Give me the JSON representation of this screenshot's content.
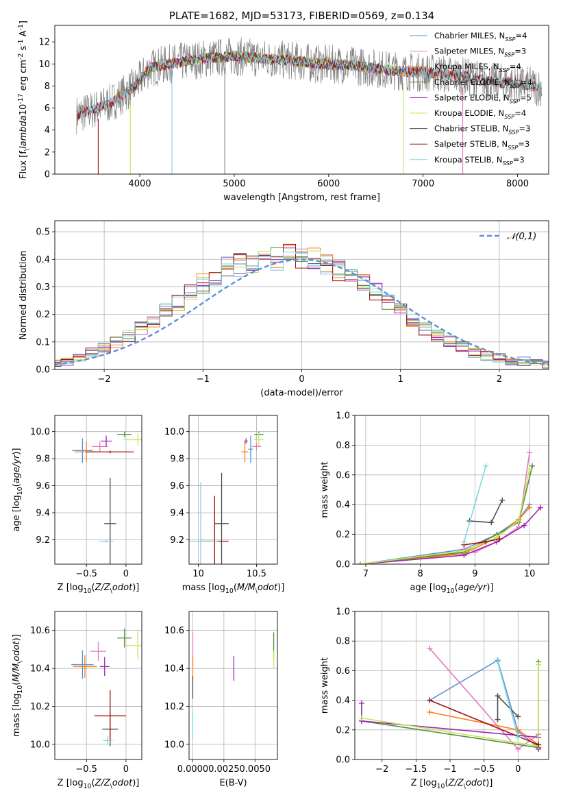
{
  "colors": {
    "chabrier_miles": "#5b8fd6",
    "salpeter_miles": "#e377c2",
    "kroupa_miles": "#ff7f0e",
    "chabrier_elodie": "#4f8f3a",
    "salpeter_elodie": "#9b27b0",
    "kroupa_elodie": "#c7e55a",
    "chabrier_stelib": "#4d4d4d",
    "salpeter_stelib": "#a01010",
    "kroupa_stelib": "#7fd6e0",
    "grey_spectrum": "#808080",
    "normal_curve": "#5b8fd6"
  },
  "chart_data": [
    {
      "id": "spectrum",
      "type": "line",
      "title": "PLATE=1682, MJD=53173, FIBERID=0569, z=0.134",
      "xlabel": "wavelength [Angstrom, rest frame]",
      "ylabel": "Flux [f$_\\lambda$10$^{-17}$ erg cm$^{-2}$ s$^{-1}$ A$^{-1}$]",
      "xlim": [
        3100,
        8330
      ],
      "ylim": [
        0,
        13.5
      ],
      "xticks": [
        4000,
        5000,
        6000,
        7000,
        8000
      ],
      "yticks": [
        0,
        2,
        4,
        6,
        8,
        10,
        12
      ],
      "grid": false,
      "legend_position": "right",
      "legend": [
        {
          "label": "Chabrier MILES, N$_{SSP}$=4",
          "color": "chabrier_miles"
        },
        {
          "label": "Salpeter MILES, N$_{SSP}$=3",
          "color": "salpeter_miles"
        },
        {
          "label": "Kroupa MILES, N$_{SSP}$=4",
          "color": "kroupa_miles"
        },
        {
          "label": "Chabrier ELODIE, N$_{SSP}$=4",
          "color": "chabrier_elodie"
        },
        {
          "label": "Salpeter ELODIE, N$_{SSP}$=5",
          "color": "salpeter_elodie"
        },
        {
          "label": "Kroupa ELODIE, N$_{SSP}$=4",
          "color": "kroupa_elodie"
        },
        {
          "label": "Chabrier STELIB, N$_{SSP}$=3",
          "color": "chabrier_stelib"
        },
        {
          "label": "Salpeter STELIB, N$_{SSP}$=3",
          "color": "salpeter_stelib"
        },
        {
          "label": "Kroupa STELIB, N$_{SSP}$=3",
          "color": "kroupa_stelib"
        }
      ],
      "continuum": {
        "x": [
          3330,
          3500,
          3700,
          3950,
          4100,
          4300,
          4700,
          5000,
          5300,
          5600,
          5900,
          6200,
          6500,
          6800,
          7100,
          7400,
          7700,
          8000,
          8200
        ],
        "y": [
          5.4,
          5.8,
          6.5,
          8.0,
          9.6,
          10.0,
          10.5,
          10.7,
          10.5,
          10.3,
          10.0,
          9.9,
          9.6,
          9.3,
          9.2,
          8.9,
          8.4,
          8.2,
          7.9
        ]
      },
      "dips": [
        {
          "x": 3560,
          "y": 0
        },
        {
          "x": 3900,
          "y": 0
        },
        {
          "x": 4340,
          "y": 0
        },
        {
          "x": 4900,
          "y": 0
        },
        {
          "x": 6790,
          "y": 0
        },
        {
          "x": 7420,
          "y": 0
        }
      ]
    },
    {
      "id": "residuals",
      "type": "line",
      "xlabel": "(data-model)/error",
      "ylabel": "Normed distribution",
      "xlim": [
        -2.5,
        2.5
      ],
      "ylim": [
        0,
        0.54
      ],
      "xticks": [
        -2,
        -1,
        0,
        1,
        2
      ],
      "yticks": [
        0.0,
        0.1,
        0.2,
        0.3,
        0.4,
        0.5
      ],
      "grid": true,
      "legend_position": "top-right",
      "normal_curve_label": "$\\mathcal{N}(0,1)$",
      "hist_base": [
        0.02,
        0.03,
        0.04,
        0.06,
        0.08,
        0.1,
        0.12,
        0.15,
        0.18,
        0.21,
        0.24,
        0.28,
        0.31,
        0.34,
        0.37,
        0.38,
        0.39,
        0.4,
        0.4,
        0.41,
        0.4,
        0.4,
        0.38,
        0.36,
        0.34,
        0.31,
        0.28,
        0.24,
        0.21,
        0.18,
        0.15,
        0.12,
        0.1,
        0.08,
        0.06,
        0.05,
        0.04,
        0.03,
        0.03,
        0.02,
        0.02
      ]
    },
    {
      "id": "age_vs_Z",
      "type": "scatter",
      "xlabel": "Z [log$_{10}$($Z/Z_\\odot$)]",
      "ylabel": "age  [log$_{10}$($age/yr$)]",
      "xlim": [
        -0.9,
        0.2
      ],
      "ylim": [
        9.02,
        10.12
      ],
      "xticks": [
        -0.5,
        0.0
      ],
      "yticks": [
        9.2,
        9.4,
        9.6,
        9.8,
        10.0
      ],
      "grid": true,
      "points": [
        {
          "color": "chabrier_miles",
          "x": -0.55,
          "y": 9.86,
          "xerr": 0.26,
          "yerr": 0.18
        },
        {
          "color": "salpeter_miles",
          "x": -0.33,
          "y": 9.89,
          "xerr": 0.2,
          "yerr": 0.07
        },
        {
          "color": "kroupa_miles",
          "x": -0.5,
          "y": 9.85,
          "xerr": 0.3,
          "yerr": 0.15
        },
        {
          "color": "chabrier_elodie",
          "x": -0.02,
          "y": 9.98,
          "xerr": 0.18,
          "yerr": 0.04
        },
        {
          "color": "salpeter_elodie",
          "x": -0.25,
          "y": 9.93,
          "xerr": 0.14,
          "yerr": 0.08
        },
        {
          "color": "kroupa_elodie",
          "x": 0.15,
          "y": 9.94,
          "xerr": 0.36,
          "yerr": 0.09
        },
        {
          "color": "chabrier_stelib",
          "x": -0.2,
          "y": 9.32,
          "xerr": 0.15,
          "yerr": 0.68
        },
        {
          "color": "salpeter_stelib",
          "x": -0.2,
          "y": 9.85,
          "xerr": 0.6,
          "yerr": 0.02
        },
        {
          "color": "kroupa_stelib",
          "x": -0.25,
          "y": 9.19,
          "xerr": 0.18,
          "yerr": 0.02
        }
      ]
    },
    {
      "id": "age_vs_mass",
      "type": "scatter",
      "xlabel": "mass [log$_{10}$($M/M_\\odot$)]",
      "ylabel": "",
      "xlim": [
        9.92,
        10.68
      ],
      "ylim": [
        9.02,
        10.12
      ],
      "xticks": [
        10.0,
        10.5
      ],
      "yticks": [
        9.2,
        9.4,
        9.6,
        9.8,
        10.0
      ],
      "grid": true,
      "points": [
        {
          "color": "chabrier_miles",
          "x": 10.45,
          "y": 9.87,
          "xerr": 0.04,
          "yerr": 0.2
        },
        {
          "color": "salpeter_miles",
          "x": 10.5,
          "y": 9.89,
          "xerr": 0.08,
          "yerr": 0.05
        },
        {
          "color": "kroupa_miles",
          "x": 10.4,
          "y": 9.85,
          "xerr": 0.06,
          "yerr": 0.15
        },
        {
          "color": "chabrier_elodie",
          "x": 10.52,
          "y": 9.98,
          "xerr": 0.08,
          "yerr": 0.04
        },
        {
          "color": "salpeter_elodie",
          "x": 10.41,
          "y": 9.93,
          "xerr": 0.03,
          "yerr": 0.04
        },
        {
          "color": "kroupa_elodie",
          "x": 10.52,
          "y": 9.94,
          "xerr": 0.08,
          "yerr": 0.1
        },
        {
          "color": "chabrier_stelib",
          "x": 10.2,
          "y": 9.32,
          "xerr": 0.12,
          "yerr": 0.75
        },
        {
          "color": "salpeter_stelib",
          "x": 10.14,
          "y": 9.19,
          "xerr": 0.24,
          "yerr": 0.67
        },
        {
          "color": "kroupa_stelib",
          "x": 10.02,
          "y": 9.19,
          "xerr": 0.3,
          "yerr": 0.87
        }
      ]
    },
    {
      "id": "weight_vs_age",
      "type": "line",
      "xlabel": "age  [log$_{10}$($age/yr$)]",
      "ylabel": "mass weight",
      "xlim": [
        6.8,
        10.35
      ],
      "ylim": [
        0,
        1.0
      ],
      "xticks": [
        7,
        8,
        9,
        10
      ],
      "yticks": [
        0.0,
        0.2,
        0.4,
        0.6,
        0.8,
        1.0
      ],
      "grid": true,
      "series": [
        {
          "color": "chabrier_miles",
          "x": [
            6.9,
            8.8,
            9.4,
            9.8,
            10.0
          ],
          "y": [
            0.0,
            0.1,
            0.2,
            0.3,
            0.4
          ]
        },
        {
          "color": "salpeter_miles",
          "x": [
            6.9,
            9.0,
            9.4,
            9.8,
            10.0
          ],
          "y": [
            0.0,
            0.08,
            0.15,
            0.25,
            0.75
          ]
        },
        {
          "color": "kroupa_miles",
          "x": [
            6.9,
            8.8,
            9.4,
            9.8,
            10.0
          ],
          "y": [
            0.0,
            0.07,
            0.18,
            0.3,
            0.38
          ]
        },
        {
          "color": "chabrier_elodie",
          "x": [
            6.9,
            8.8,
            9.4,
            9.8,
            10.05
          ],
          "y": [
            0.0,
            0.08,
            0.2,
            0.28,
            0.66
          ]
        },
        {
          "color": "salpeter_elodie",
          "x": [
            6.9,
            8.8,
            9.4,
            9.9,
            10.2
          ],
          "y": [
            0.0,
            0.06,
            0.15,
            0.26,
            0.38
          ]
        },
        {
          "color": "kroupa_elodie",
          "x": [
            6.9,
            8.8,
            9.4,
            9.8,
            10.0
          ],
          "y": [
            0.0,
            0.09,
            0.18,
            0.29,
            0.64
          ]
        },
        {
          "color": "chabrier_stelib",
          "x": [
            8.9,
            9.3,
            9.5
          ],
          "y": [
            0.29,
            0.28,
            0.43
          ]
        },
        {
          "color": "salpeter_stelib",
          "x": [
            8.8,
            9.2,
            9.45
          ],
          "y": [
            0.13,
            0.15,
            0.17
          ]
        },
        {
          "color": "kroupa_stelib",
          "x": [
            8.8,
            9.2
          ],
          "y": [
            0.15,
            0.66
          ]
        }
      ]
    },
    {
      "id": "mass_vs_Z",
      "type": "scatter",
      "xlabel": "Z [log$_{10}$($Z/Z_\\odot$)]",
      "ylabel": "mass [log$_{10}$($M/M_\\odot$)]",
      "xlim": [
        -0.9,
        0.2
      ],
      "ylim": [
        9.92,
        10.7
      ],
      "xticks": [
        -0.5,
        0.0
      ],
      "yticks": [
        10.0,
        10.2,
        10.4,
        10.6
      ],
      "grid": true,
      "points": [
        {
          "color": "chabrier_miles",
          "x": -0.55,
          "y": 10.42,
          "xerr": 0.28,
          "yerr": 0.15
        },
        {
          "color": "salpeter_miles",
          "x": -0.35,
          "y": 10.49,
          "xerr": 0.2,
          "yerr": 0.1
        },
        {
          "color": "kroupa_miles",
          "x": -0.52,
          "y": 10.41,
          "xerr": 0.3,
          "yerr": 0.12
        },
        {
          "color": "chabrier_elodie",
          "x": -0.02,
          "y": 10.56,
          "xerr": 0.18,
          "yerr": 0.1
        },
        {
          "color": "salpeter_elodie",
          "x": -0.27,
          "y": 10.41,
          "xerr": 0.12,
          "yerr": 0.1
        },
        {
          "color": "kroupa_elodie",
          "x": 0.15,
          "y": 10.52,
          "xerr": 0.3,
          "yerr": 0.15
        },
        {
          "color": "chabrier_stelib",
          "x": -0.2,
          "y": 10.08,
          "xerr": 0.2,
          "yerr": 0.18
        },
        {
          "color": "salpeter_stelib",
          "x": -0.2,
          "y": 10.15,
          "xerr": 0.4,
          "yerr": 0.27
        },
        {
          "color": "kroupa_stelib",
          "x": -0.23,
          "y": 10.02,
          "xerr": 0.12,
          "yerr": 0.05
        }
      ]
    },
    {
      "id": "mass_vs_ebv",
      "type": "scatter",
      "xlabel": "E(B-V)",
      "ylabel": "",
      "xlim": [
        -0.0003,
        0.0068
      ],
      "ylim": [
        9.92,
        10.7
      ],
      "xticks": [
        0.0,
        0.0025,
        0.005
      ],
      "xticklabels": [
        "0.0000",
        "0.0025",
        "0.0050"
      ],
      "yticks": [
        10.0,
        10.2,
        10.4,
        10.6
      ],
      "grid": true,
      "points": [
        {
          "color": "salpeter_miles",
          "x": 0.0,
          "y": 10.5,
          "yerr": 0.18
        },
        {
          "color": "kroupa_miles",
          "x": 0.0,
          "y": 10.4,
          "yerr": 0.12
        },
        {
          "color": "chabrier_stelib",
          "x": 0.0,
          "y": 10.3,
          "yerr": 0.12
        },
        {
          "color": "kroupa_stelib",
          "x": 0.0,
          "y": 10.1,
          "yerr": 0.15
        },
        {
          "color": "salpeter_elodie",
          "x": 0.0033,
          "y": 10.4,
          "yerr": 0.13
        },
        {
          "color": "chabrier_elodie",
          "x": 0.0065,
          "y": 10.52,
          "yerr": 0.14
        },
        {
          "color": "kroupa_elodie",
          "x": 0.0065,
          "y": 10.45,
          "yerr": 0.09
        }
      ]
    },
    {
      "id": "weight_vs_Z",
      "type": "line",
      "xlabel": "Z [log$_{10}$($Z/Z_\\odot$)]",
      "ylabel": "mass weight",
      "xlim": [
        -2.4,
        0.45
      ],
      "ylim": [
        0,
        1.0
      ],
      "xticks": [
        -2.0,
        -1.5,
        -1.0,
        -0.5,
        0.0
      ],
      "yticks": [
        0.0,
        0.2,
        0.4,
        0.6,
        0.8,
        1.0
      ],
      "grid": true,
      "series": [
        {
          "color": "chabrier_miles",
          "x": [
            -1.3,
            -0.3,
            0.0,
            0.3
          ],
          "y": [
            0.4,
            0.67,
            0.19,
            0.08
          ]
        },
        {
          "color": "salpeter_miles",
          "x": [
            -1.3,
            0.0,
            0.3
          ],
          "y": [
            0.75,
            0.07,
            0.17
          ]
        },
        {
          "color": "kroupa_miles",
          "x": [
            -1.3,
            0.0,
            0.3
          ],
          "y": [
            0.32,
            0.2,
            0.1
          ]
        },
        {
          "color": "chabrier_elodie",
          "x": [
            -2.3,
            0.3,
            0.3
          ],
          "y": [
            0.26,
            0.08,
            0.66
          ]
        },
        {
          "color": "salpeter_elodie",
          "x": [
            -2.3,
            -2.3,
            0.3,
            0.3
          ],
          "y": [
            0.38,
            0.26,
            0.15,
            0.07
          ]
        },
        {
          "color": "kroupa_elodie",
          "x": [
            -2.3,
            0.3,
            0.3
          ],
          "y": [
            0.28,
            0.09,
            0.64
          ]
        },
        {
          "color": "chabrier_stelib",
          "x": [
            -0.3,
            -0.3,
            0.0
          ],
          "y": [
            0.27,
            0.43,
            0.29
          ]
        },
        {
          "color": "salpeter_stelib",
          "x": [
            -1.3,
            0.3
          ],
          "y": [
            0.4,
            0.1
          ]
        },
        {
          "color": "kroupa_stelib",
          "x": [
            -0.3,
            0.0
          ],
          "y": [
            0.66,
            0.15
          ]
        }
      ]
    }
  ]
}
